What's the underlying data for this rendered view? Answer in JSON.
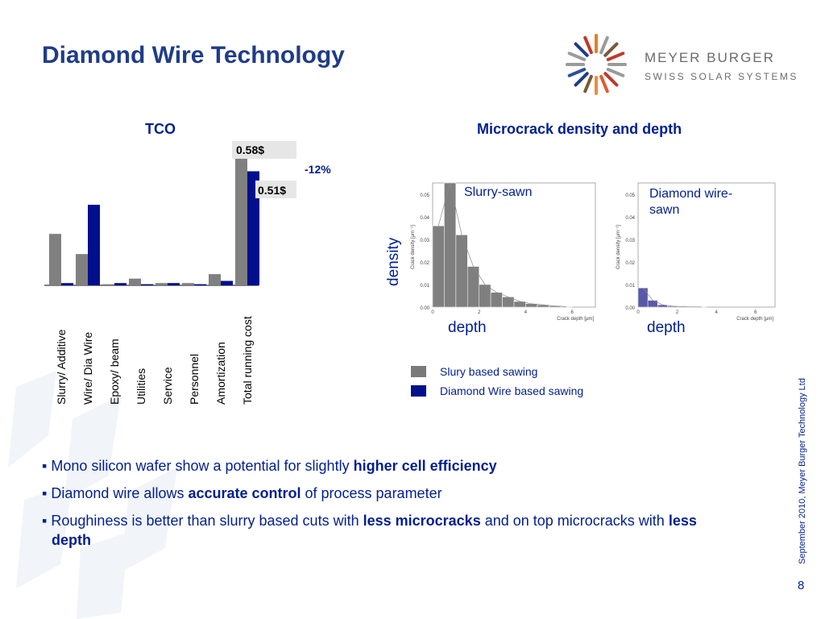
{
  "title": "Diamond Wire Technology",
  "logo": {
    "name": "MEYER BURGER",
    "tagline": "SWISS SOLAR SYSTEMS",
    "ray_colors": [
      "#9a9a9a",
      "#9a9a9a",
      "#c0392b",
      "#e15a2b",
      "#f08a3c",
      "#7a5a3a",
      "#1f3c88",
      "#2a4f9b",
      "#9a9a9a",
      "#9a9a9a",
      "#1f3c88",
      "#c0392b",
      "#e67e22",
      "#9a9a9a",
      "#7a5a3a",
      "#c0392b"
    ]
  },
  "colors": {
    "slurry": "#808080",
    "diamond": "#000f8c",
    "heading": "#001f8f",
    "hist_slurry": "#7f7f7f",
    "hist_diamond": "#5a58a8"
  },
  "tco": {
    "heading": "TCO",
    "chart_data": {
      "type": "bar",
      "categories": [
        "Slurry/ Additive",
        "Wire/ Dia Wire",
        "Epoxy/ beam",
        "Utilities",
        "Service",
        "Personnel",
        "Amortization",
        "Total running cost"
      ],
      "series": [
        {
          "name": "Slury based sawing",
          "values": [
            0.23,
            0.14,
            0.005,
            0.03,
            0.01,
            0.01,
            0.05,
            0.58
          ]
        },
        {
          "name": "Diamond Wire based sawing",
          "values": [
            0.01,
            0.36,
            0.01,
            0.005,
            0.01,
            0.005,
            0.02,
            0.51
          ]
        }
      ],
      "ylim": [
        0,
        0.62
      ],
      "annotations": {
        "slurry_total": "0.58$",
        "diamond_total": "0.51$",
        "change": "-12%"
      }
    }
  },
  "microcrack": {
    "heading": "Microcrack density and depth",
    "y_axis": "density",
    "x_axis": "depth",
    "chart_data": [
      {
        "type": "bar",
        "title": "Slurry-sawn",
        "xlabel": "Crack depth [μm]",
        "ylabel": "Crack density [μm⁻¹]",
        "x": [
          0.25,
          0.75,
          1.25,
          1.75,
          2.25,
          2.75,
          3.25,
          3.75,
          4.25,
          4.75,
          5.25,
          5.75
        ],
        "values": [
          0.036,
          0.055,
          0.032,
          0.018,
          0.01,
          0.0065,
          0.0045,
          0.0025,
          0.0015,
          0.001,
          0.0005,
          0.0002
        ],
        "xlim": [
          0,
          7
        ],
        "ylim": [
          0,
          0.055
        ],
        "xticks": [
          "0",
          "2",
          "4",
          "6"
        ],
        "yticks": [
          "0.00",
          "0.01",
          "0.02",
          "0.03",
          "0.04",
          "0.05"
        ]
      },
      {
        "type": "bar",
        "title": "Diamond wire-sawn",
        "xlabel": "Crack depth [μm]",
        "ylabel": "Crack density [μm⁻¹]",
        "x": [
          0.25,
          0.75,
          1.25,
          1.75,
          2.25,
          2.75,
          3.25
        ],
        "values": [
          0.0085,
          0.003,
          0.001,
          0.0004,
          0.0002,
          0.0001,
          5e-05
        ],
        "xlim": [
          0,
          7
        ],
        "ylim": [
          0,
          0.055
        ],
        "xticks": [
          "0",
          "2",
          "4",
          "6"
        ],
        "yticks": [
          "0.00",
          "0.01",
          "0.02",
          "0.03",
          "0.04",
          "0.05"
        ]
      }
    ],
    "panel_titles": [
      "Slurry-sawn",
      "Diamond wire-\nsawn"
    ]
  },
  "legend": [
    {
      "label": "Slury based sawing",
      "color": "#7a7a7a"
    },
    {
      "label": "Diamond Wire based sawing",
      "color": "#000f8c"
    }
  ],
  "bullets": [
    {
      "pre": "Mono silicon wafer show a potential for slightly ",
      "bold": "higher cell efficiency",
      "post": ""
    },
    {
      "pre": "Diamond wire allows ",
      "bold": "accurate control",
      "post": " of process parameter"
    },
    {
      "pre": "Roughiness is better than slurry based cuts with ",
      "bold": "less microcracks",
      "post": " and on top microcracks with ",
      "bold2": "less depth"
    }
  ],
  "footer": "September 2010, Meyer Burger Technology Ltd",
  "page_number": "8"
}
